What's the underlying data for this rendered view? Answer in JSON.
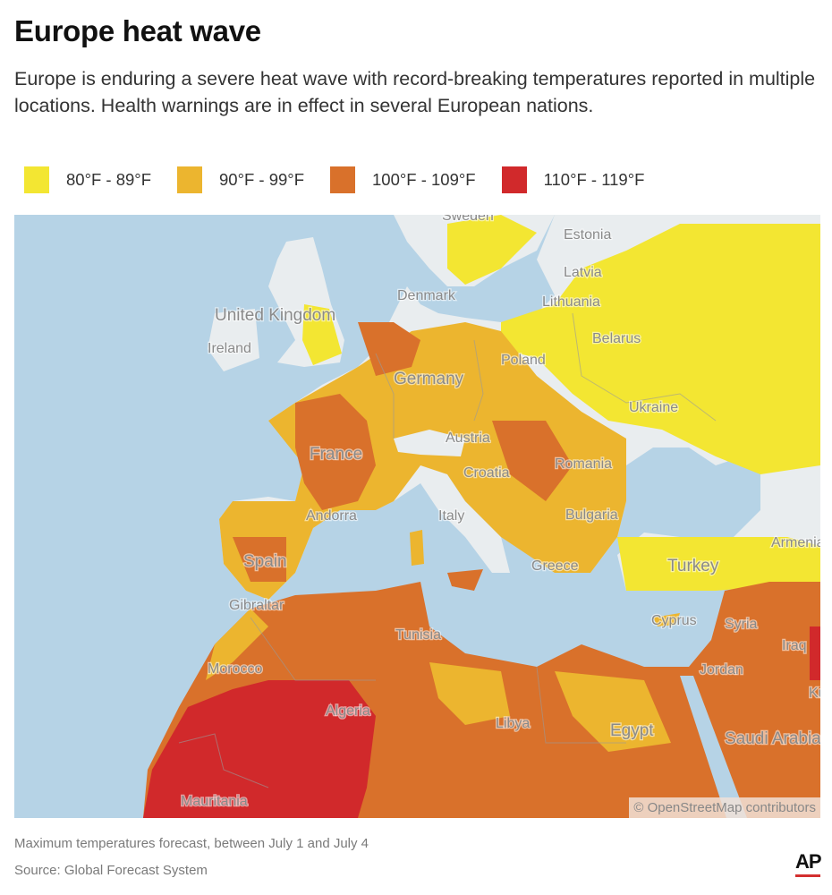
{
  "title": "Europe heat wave",
  "subtitle": "Europe is enduring a severe heat wave with record-breaking temperatures reported in multiple locations. Health warnings are in effect in several European nations.",
  "legend": [
    {
      "label": "80°F - 89°F",
      "color": "#f3e632"
    },
    {
      "label": "90°F - 99°F",
      "color": "#ecb52f"
    },
    {
      "label": "100°F - 109°F",
      "color": "#d9712b"
    },
    {
      "label": "110°F - 119°F",
      "color": "#d1292b"
    }
  ],
  "colors": {
    "sea": "#b6d3e6",
    "land_no_data": "#e9edef"
  },
  "map": {
    "labels": {
      "sweden": "Sweden",
      "estonia": "Estonia",
      "latvia": "Latvia",
      "lithuania": "Lithuania",
      "denmark": "Denmark",
      "united_kingdom": "United Kingdom",
      "ireland": "Ireland",
      "belarus": "Belarus",
      "poland": "Poland",
      "germany": "Germany",
      "ukraine": "Ukraine",
      "austria": "Austria",
      "france": "France",
      "romania": "Romania",
      "croatia": "Croatia",
      "andorra": "Andorra",
      "italy": "Italy",
      "bulgaria": "Bulgaria",
      "spain": "Spain",
      "armenia": "Armenia",
      "turkey": "Turkey",
      "greece": "Greece",
      "gibraltar": "Gibraltar",
      "tunisia": "Tunisia",
      "cyprus": "Cyprus",
      "syria": "Syria",
      "iraq": "Iraq",
      "morocco": "Morocco",
      "jordan": "Jordan",
      "kuwait": "Kuwait",
      "algeria": "Algeria",
      "libya": "Libya",
      "egypt": "Egypt",
      "saudi_arabia": "Saudi Arabia",
      "mauritania": "Mauritania"
    },
    "attribution": "© OpenStreetMap contributors"
  },
  "footer": {
    "note": "Maximum temperatures forecast, between July 1 and July 4",
    "source": "Source: Global Forecast System",
    "logo": "AP"
  }
}
